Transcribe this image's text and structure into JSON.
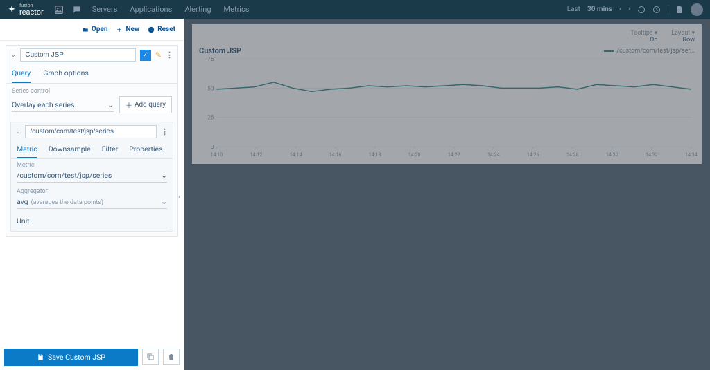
{
  "topbar": {
    "brand_pre": "fusion",
    "brand": "reactor",
    "nav": [
      "Servers",
      "Applications",
      "Alerting",
      "Metrics"
    ],
    "time_label": "Last",
    "time_value": "30 mins"
  },
  "toolbar": {
    "open": "Open",
    "new": "New",
    "reset": "Reset"
  },
  "panel": {
    "title": "Custom JSP",
    "tabs": {
      "query": "Query",
      "graph": "Graph options"
    },
    "series_label": "Series control",
    "series_value": "Overlay each series",
    "add_query": "Add query"
  },
  "query": {
    "path": "/custom/com/test/jsp/series",
    "subtabs": {
      "metric": "Metric",
      "downsample": "Downsample",
      "filter": "Filter",
      "properties": "Properties"
    },
    "metric_label": "Metric",
    "metric_value": "/custom/com/test/jsp/series",
    "agg_label": "Aggregator",
    "agg_value": "avg",
    "agg_desc": "(averages the data points)",
    "unit_label": "Unit"
  },
  "save": {
    "label": "Save Custom JSP"
  },
  "chart": {
    "title": "Custom JSP",
    "legend": "/custom/com/test/jsp/ser...",
    "tooltips_label": "Tooltips ▾",
    "tooltips_value": "On",
    "layout_label": "Layout ▾",
    "layout_value": "Row",
    "y_ticks": [
      0,
      25,
      50,
      75
    ],
    "ylim": [
      0,
      75
    ],
    "x_labels": [
      "14:10",
      "14:12",
      "14:14",
      "14:16",
      "14:18",
      "14:20",
      "14:22",
      "14:24",
      "14:26",
      "14:28",
      "14:30",
      "14:32",
      "14:34"
    ],
    "points": [
      49,
      50,
      51,
      55,
      50,
      47,
      49,
      50,
      52,
      51,
      52,
      51,
      52,
      53,
      52,
      50,
      50,
      50,
      51,
      49,
      53,
      52,
      51,
      53,
      51,
      49
    ],
    "line_color": "#3a8a8a",
    "grid_color": "#e0e6ea",
    "bg": "#ffffff"
  }
}
